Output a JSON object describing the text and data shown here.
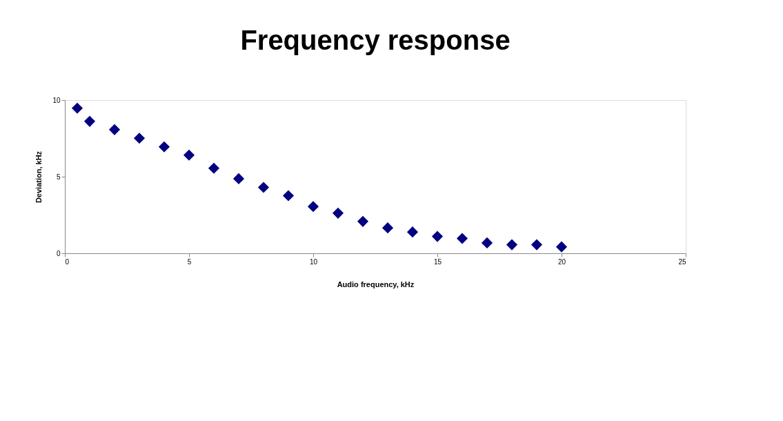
{
  "chart_data": {
    "type": "scatter",
    "title": "Frequency response",
    "xlabel": "Audio frequency, kHz",
    "ylabel": "Deviation, kHz",
    "x": [
      0.5,
      1,
      2,
      3,
      4,
      5,
      6,
      7,
      8,
      9,
      10,
      11,
      12,
      13,
      14,
      15,
      16,
      17,
      18,
      19,
      20
    ],
    "series": [
      {
        "color": "#000080",
        "values": [
          9.47,
          8.61,
          8.07,
          7.51,
          6.95,
          6.41,
          5.55,
          4.87,
          4.3,
          3.76,
          3.05,
          2.62,
          2.08,
          1.66,
          1.39,
          1.1,
          0.97,
          0.68,
          0.56,
          0.56,
          0.42
        ]
      }
    ],
    "xlim": [
      0,
      25
    ],
    "xticks": [
      0,
      5,
      10,
      15,
      20,
      25
    ],
    "ylim": [
      0,
      10
    ],
    "yticks": [
      0,
      5,
      10
    ],
    "grid": false,
    "legend": false,
    "marker": "diamond"
  }
}
